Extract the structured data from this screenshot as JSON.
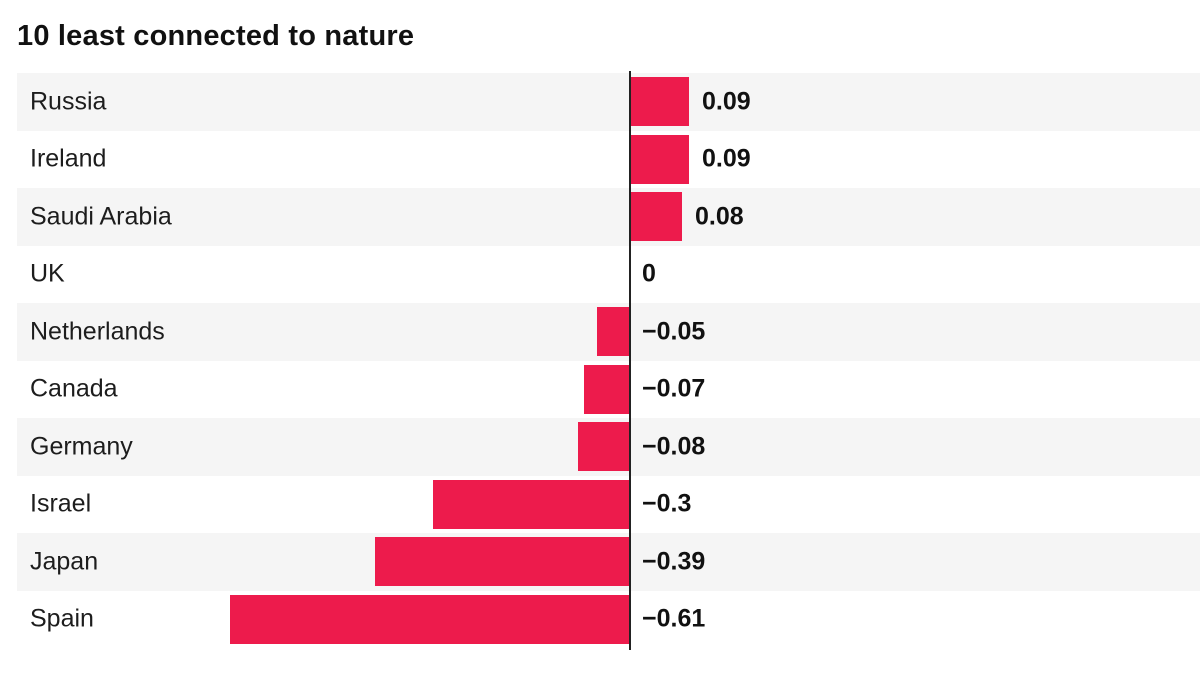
{
  "title": "10 least connected to nature",
  "colors": {
    "bar": "#ED1B4C",
    "row_alt_bg": "#F5F5F5",
    "row_bg": "#FFFFFF",
    "baseline": "#222222",
    "label_text": "#1D1D1D",
    "value_text": "#111111",
    "title_text": "#111111"
  },
  "chart_data": {
    "type": "bar",
    "orientation": "horizontal",
    "title": "10 least connected to nature",
    "categories": [
      "Russia",
      "Ireland",
      "Saudi Arabia",
      "UK",
      "Netherlands",
      "Canada",
      "Germany",
      "Israel",
      "Japan",
      "Spain"
    ],
    "values": [
      0.09,
      0.09,
      0.08,
      0,
      -0.05,
      -0.07,
      -0.08,
      -0.3,
      -0.39,
      -0.61
    ],
    "value_labels": [
      "0.09",
      "0.09",
      "0.08",
      "0",
      "−0.05",
      "−0.07",
      "−0.08",
      "−0.3",
      "−0.39",
      "−0.61"
    ],
    "xlabel": "",
    "ylabel": "",
    "xlim": [
      -0.65,
      0.12
    ],
    "grid": false,
    "legend": false,
    "zero_baseline": true,
    "row_striping": "alternating, first row shaded"
  }
}
